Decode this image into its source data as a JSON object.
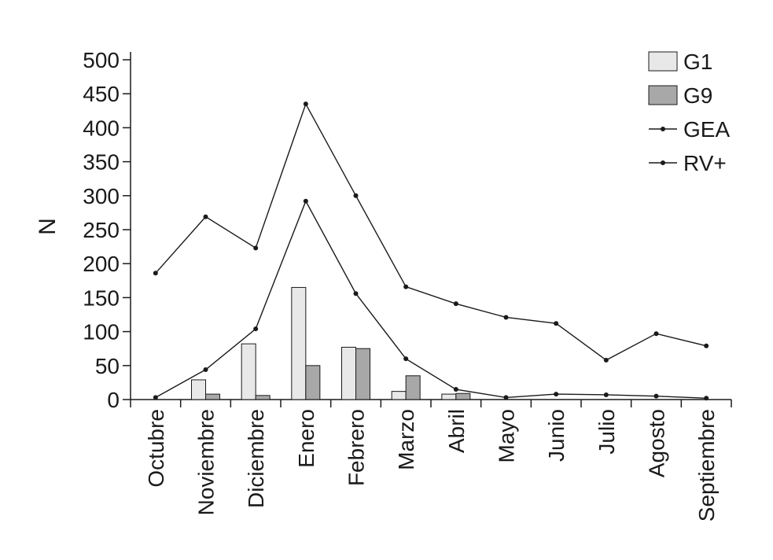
{
  "chart_data": {
    "type": "bar",
    "title": "",
    "xlabel": "",
    "ylabel": "N",
    "ylim": [
      0,
      500
    ],
    "yticks": [
      0,
      50,
      100,
      150,
      200,
      250,
      300,
      350,
      400,
      450,
      500
    ],
    "grid": false,
    "legend_position": "top-right",
    "categories": [
      "Octubre",
      "Noviembre",
      "Diciembre",
      "Enero",
      "Febrero",
      "Marzo",
      "Abril",
      "Mayo",
      "Junio",
      "Julio",
      "Agosto",
      "Septiembre"
    ],
    "series": [
      {
        "name": "G1",
        "kind": "bar",
        "color": "#e8e8e8",
        "values": [
          0,
          29,
          82,
          165,
          77,
          12,
          8,
          0,
          0,
          0,
          0,
          0
        ]
      },
      {
        "name": "G9",
        "kind": "bar",
        "color": "#a8a8a8",
        "values": [
          0,
          8,
          6,
          50,
          75,
          35,
          9,
          0,
          0,
          0,
          0,
          0
        ]
      },
      {
        "name": "GEA",
        "kind": "line",
        "color": "#1a1a1a",
        "values": [
          186,
          269,
          223,
          435,
          300,
          166,
          141,
          121,
          112,
          58,
          97,
          79
        ]
      },
      {
        "name": "RV+",
        "kind": "line",
        "color": "#1a1a1a",
        "values": [
          3,
          44,
          104,
          292,
          156,
          60,
          15,
          3,
          8,
          7,
          5,
          2
        ]
      }
    ]
  }
}
